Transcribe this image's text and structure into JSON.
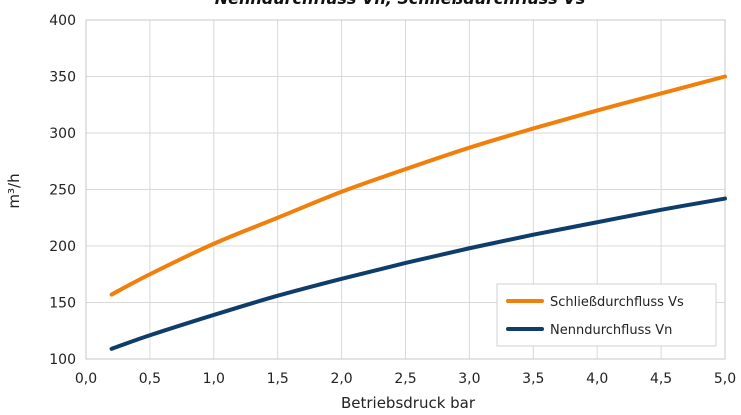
{
  "chart_data": {
    "type": "line",
    "title": "Nenndurchfluss Vn, Schließdurchfluss Vs",
    "xlabel": "Betriebsdruck bar",
    "ylabel": "m³/h",
    "xlim": [
      0,
      5
    ],
    "ylim": [
      100,
      400
    ],
    "x_ticks": [
      "0,0",
      "0,5",
      "1,0",
      "1,5",
      "2,0",
      "2,5",
      "3,0",
      "3,5",
      "4,0",
      "4,5",
      "5,0"
    ],
    "y_ticks": [
      "100",
      "150",
      "200",
      "250",
      "300",
      "350",
      "400"
    ],
    "grid": true,
    "legend_position": "bottom-right",
    "series": [
      {
        "name": "Schließdurchfluss Vs",
        "color": "#f07f0b",
        "x": [
          0.2,
          0.5,
          1.0,
          1.5,
          2.0,
          2.5,
          3.0,
          3.5,
          4.0,
          4.5,
          5.0
        ],
        "y": [
          157,
          175,
          202,
          225,
          248,
          268,
          287,
          304,
          320,
          335,
          350
        ]
      },
      {
        "name": "Nenndurchfluss Vn",
        "color": "#0e3d6b",
        "x": [
          0.2,
          0.5,
          1.0,
          1.5,
          2.0,
          2.5,
          3.0,
          3.5,
          4.0,
          4.5,
          5.0
        ],
        "y": [
          109,
          121,
          139,
          156,
          171,
          185,
          198,
          210,
          221,
          232,
          242
        ]
      }
    ]
  }
}
